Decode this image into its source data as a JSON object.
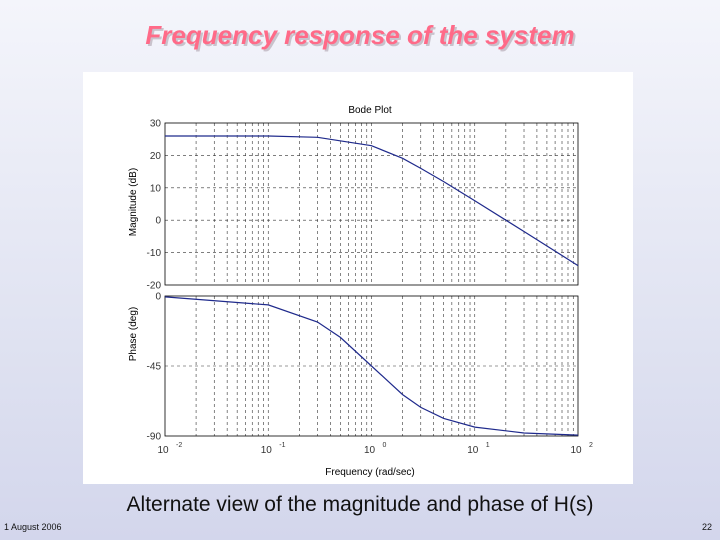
{
  "slide": {
    "title": "Frequency response of the system",
    "caption": "Alternate view of the magnitude and phase of H(s)",
    "date": "1 August 2006",
    "page": "22"
  },
  "chart_data": [
    {
      "type": "line",
      "title": "Bode Plot",
      "xlabel": "Frequency  (rad/sec)",
      "ylabel": "Magnitude (dB)",
      "xscale": "log",
      "xlim": [
        0.01,
        100
      ],
      "ylim": [
        -20,
        30
      ],
      "yticks": [
        "30",
        "20",
        "10",
        "0",
        "-10",
        "-20"
      ],
      "grid": true,
      "line_color": "#1f2a8c",
      "x": [
        0.01,
        0.1,
        0.3,
        1,
        2,
        3,
        5,
        10,
        30,
        100
      ],
      "y": [
        26,
        26,
        25.6,
        23,
        19.1,
        16.0,
        11.9,
        6.0,
        -3.5,
        -14.0
      ]
    },
    {
      "type": "line",
      "xlabel": "Frequency  (rad/sec)",
      "ylabel": "Phase (deg)",
      "xscale": "log",
      "xlim": [
        0.01,
        100
      ],
      "ylim": [
        -90,
        0
      ],
      "yticks": [
        "0",
        "-45",
        "-90"
      ],
      "xticks": [
        {
          "base": "10",
          "exp": "-2"
        },
        {
          "base": "10",
          "exp": "-1"
        },
        {
          "base": "10",
          "exp": "0"
        },
        {
          "base": "10",
          "exp": "1"
        },
        {
          "base": "10",
          "exp": "2"
        }
      ],
      "grid": true,
      "line_color": "#1f2a8c",
      "x": [
        0.01,
        0.1,
        0.3,
        0.5,
        1,
        2,
        3,
        5,
        10,
        30,
        100
      ],
      "y": [
        -0.6,
        -5.7,
        -16.7,
        -26.6,
        -45,
        -63.4,
        -71.6,
        -78.7,
        -84.3,
        -88.1,
        -89.4
      ]
    }
  ]
}
